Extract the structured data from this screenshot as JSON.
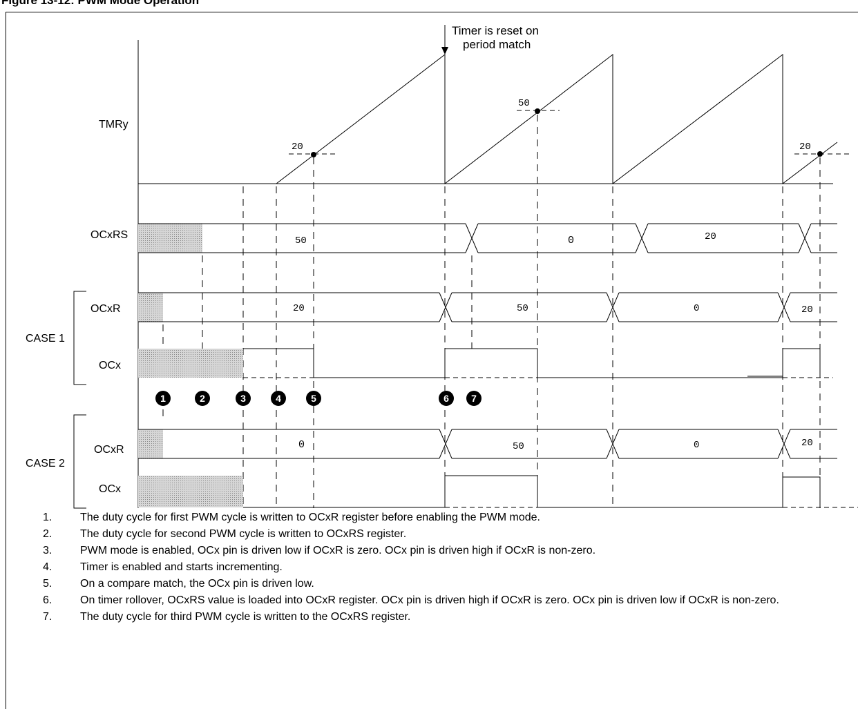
{
  "figure_title": "Figure 13-12: PWM Mode Operation",
  "annotation": {
    "line1": "Timer is reset on",
    "line2": "period match"
  },
  "signals": {
    "tmry": "TMRy",
    "ocxrs": "OCxRS",
    "case1_ocxr": "OCxR",
    "case1_ocx": "OCx",
    "case2_ocxr": "OCxR",
    "case2_ocx": "OCx"
  },
  "groups": {
    "case1": "CASE 1",
    "case2": "CASE 2"
  },
  "tmry_values": [
    "20",
    "50",
    "20"
  ],
  "ocxrs_values": [
    "50",
    "0",
    "20"
  ],
  "case1_ocxr_values": [
    "20",
    "50",
    "0",
    "20"
  ],
  "case2_ocxr_values": [
    "0",
    "50",
    "0",
    "20"
  ],
  "markers": [
    "1",
    "2",
    "3",
    "4",
    "5",
    "6",
    "7"
  ],
  "notes": [
    {
      "num": "1.",
      "text": "The duty cycle for first PWM cycle is written to OCxR register before enabling the PWM mode."
    },
    {
      "num": "2.",
      "text": "The duty cycle for second PWM cycle is written to OCxRS register."
    },
    {
      "num": "3.",
      "text": "PWM mode is enabled, OCx pin is driven low if OCxR is zero. OCx pin is driven high if OCxR is non-zero."
    },
    {
      "num": "4.",
      "text": "Timer is enabled and starts incrementing."
    },
    {
      "num": "5.",
      "text": "On a compare match, the OCx pin is driven low."
    },
    {
      "num": "6.",
      "text": "On timer rollover, OCxRS value is loaded into OCxR register. OCx pin is driven high if OCxR is zero. OCx pin is driven low if OCxR is non-zero."
    },
    {
      "num": "7.",
      "text": "The duty cycle for third PWM cycle is written to the OCxRS register."
    }
  ]
}
